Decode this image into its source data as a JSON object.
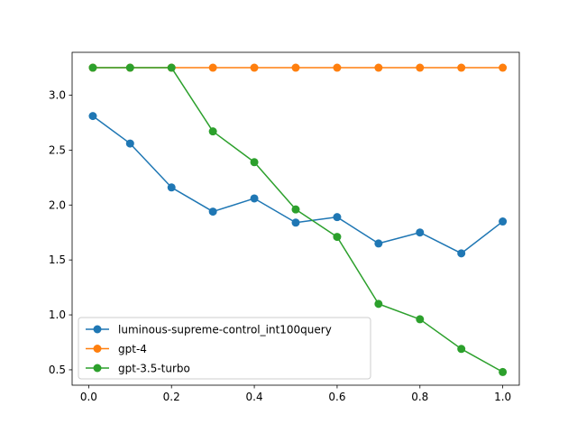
{
  "chart_data": {
    "type": "line",
    "title": "",
    "xlabel": "",
    "ylabel": "",
    "xlim": [
      -0.04,
      1.04
    ],
    "ylim": [
      0.36,
      3.39
    ],
    "x_ticks": [
      0.0,
      0.2,
      0.4,
      0.6,
      0.8,
      1.0
    ],
    "x_tick_labels": [
      "0.0",
      "0.2",
      "0.4",
      "0.6",
      "0.8",
      "1.0"
    ],
    "y_ticks": [
      0.5,
      1.0,
      1.5,
      2.0,
      2.5,
      3.0
    ],
    "y_tick_labels": [
      "0.5",
      "1.0",
      "1.5",
      "2.0",
      "2.5",
      "3.0"
    ],
    "grid": false,
    "legend_position": "lower-left",
    "x": [
      0.01,
      0.1,
      0.2,
      0.3,
      0.4,
      0.5,
      0.6,
      0.7,
      0.8,
      0.9,
      1.0
    ],
    "series": [
      {
        "name": "luminous-supreme-control_int100query",
        "color": "#1f77b4",
        "values": [
          2.81,
          2.56,
          2.16,
          1.94,
          2.06,
          1.84,
          1.89,
          1.65,
          1.75,
          1.56,
          1.85
        ]
      },
      {
        "name": "gpt-4",
        "color": "#ff7f0e",
        "values": [
          3.25,
          3.25,
          3.25,
          3.25,
          3.25,
          3.25,
          3.25,
          3.25,
          3.25,
          3.25,
          3.25
        ]
      },
      {
        "name": "gpt-3.5-turbo",
        "color": "#2ca02c",
        "values": [
          3.25,
          3.25,
          3.25,
          2.67,
          2.39,
          1.96,
          1.71,
          1.1,
          0.96,
          0.69,
          0.48
        ]
      }
    ]
  }
}
